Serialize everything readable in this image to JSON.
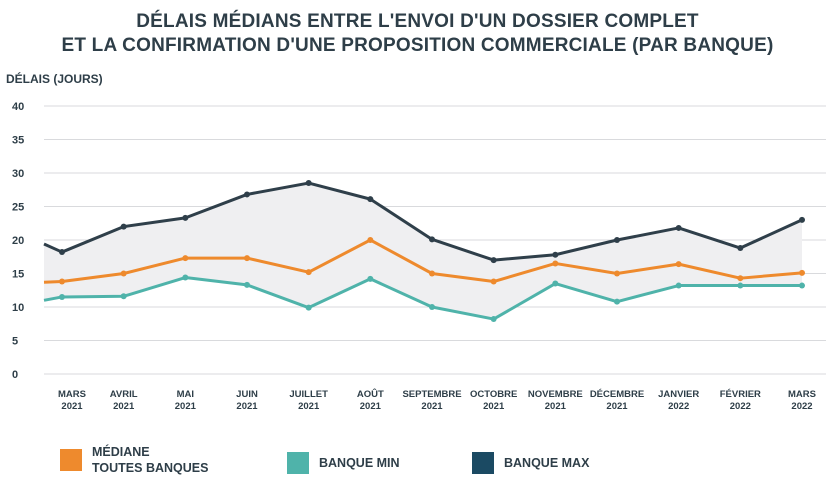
{
  "chart_data": {
    "type": "line",
    "title": [
      "DÉLAIS MÉDIANS ENTRE L'ENVOI D'UN DOSSIER COMPLET",
      "ET LA CONFIRMATION D'UNE PROPOSITION COMMERCIALE (PAR BANQUE)"
    ],
    "ylabel": "DÉLAIS (JOURS)",
    "ylim": [
      0,
      40
    ],
    "yticks": [
      0,
      5,
      10,
      15,
      20,
      25,
      30,
      35,
      40
    ],
    "grid": true,
    "legend_position": "bottom",
    "categories": [
      [
        "MARS",
        "2021"
      ],
      [
        "AVRIL",
        "2021"
      ],
      [
        "MAI",
        "2021"
      ],
      [
        "JUIN",
        "2021"
      ],
      [
        "JUILLET",
        "2021"
      ],
      [
        "AOÛT",
        "2021"
      ],
      [
        "SEPTEMBRE",
        "2021"
      ],
      [
        "OCTOBRE",
        "2021"
      ],
      [
        "NOVEMBRE",
        "2021"
      ],
      [
        "DÉCEMBRE",
        "2021"
      ],
      [
        "JANVIER",
        "2022"
      ],
      [
        "FÉVRIER",
        "2022"
      ],
      [
        "MARS",
        "2022"
      ]
    ],
    "series": [
      {
        "key": "max",
        "name": "BANQUE MAX",
        "color": "#2f3f4a",
        "values": [
          18.2,
          22.0,
          23.3,
          26.8,
          28.5,
          26.1,
          20.1,
          17.0,
          17.8,
          20.0,
          21.8,
          18.8,
          23.0
        ]
      },
      {
        "key": "median",
        "name": "MÉDIANE\nTOUTES BANQUES",
        "color": "#ee8a2d",
        "values": [
          13.8,
          15.0,
          17.3,
          17.3,
          15.2,
          20.0,
          15.0,
          13.8,
          16.5,
          15.0,
          16.4,
          14.3,
          15.1
        ]
      },
      {
        "key": "min",
        "name": "BANQUE MIN",
        "color": "#4fb3aa",
        "values": [
          11.5,
          11.6,
          14.4,
          13.3,
          9.9,
          14.2,
          10.0,
          8.2,
          13.5,
          10.8,
          13.2,
          13.2,
          13.2
        ]
      }
    ],
    "band_color": "#efeff1",
    "legend_swatch_colors": {
      "median": "#ee8a2d",
      "min": "#4fb3aa",
      "max": "#1b4a63"
    }
  }
}
